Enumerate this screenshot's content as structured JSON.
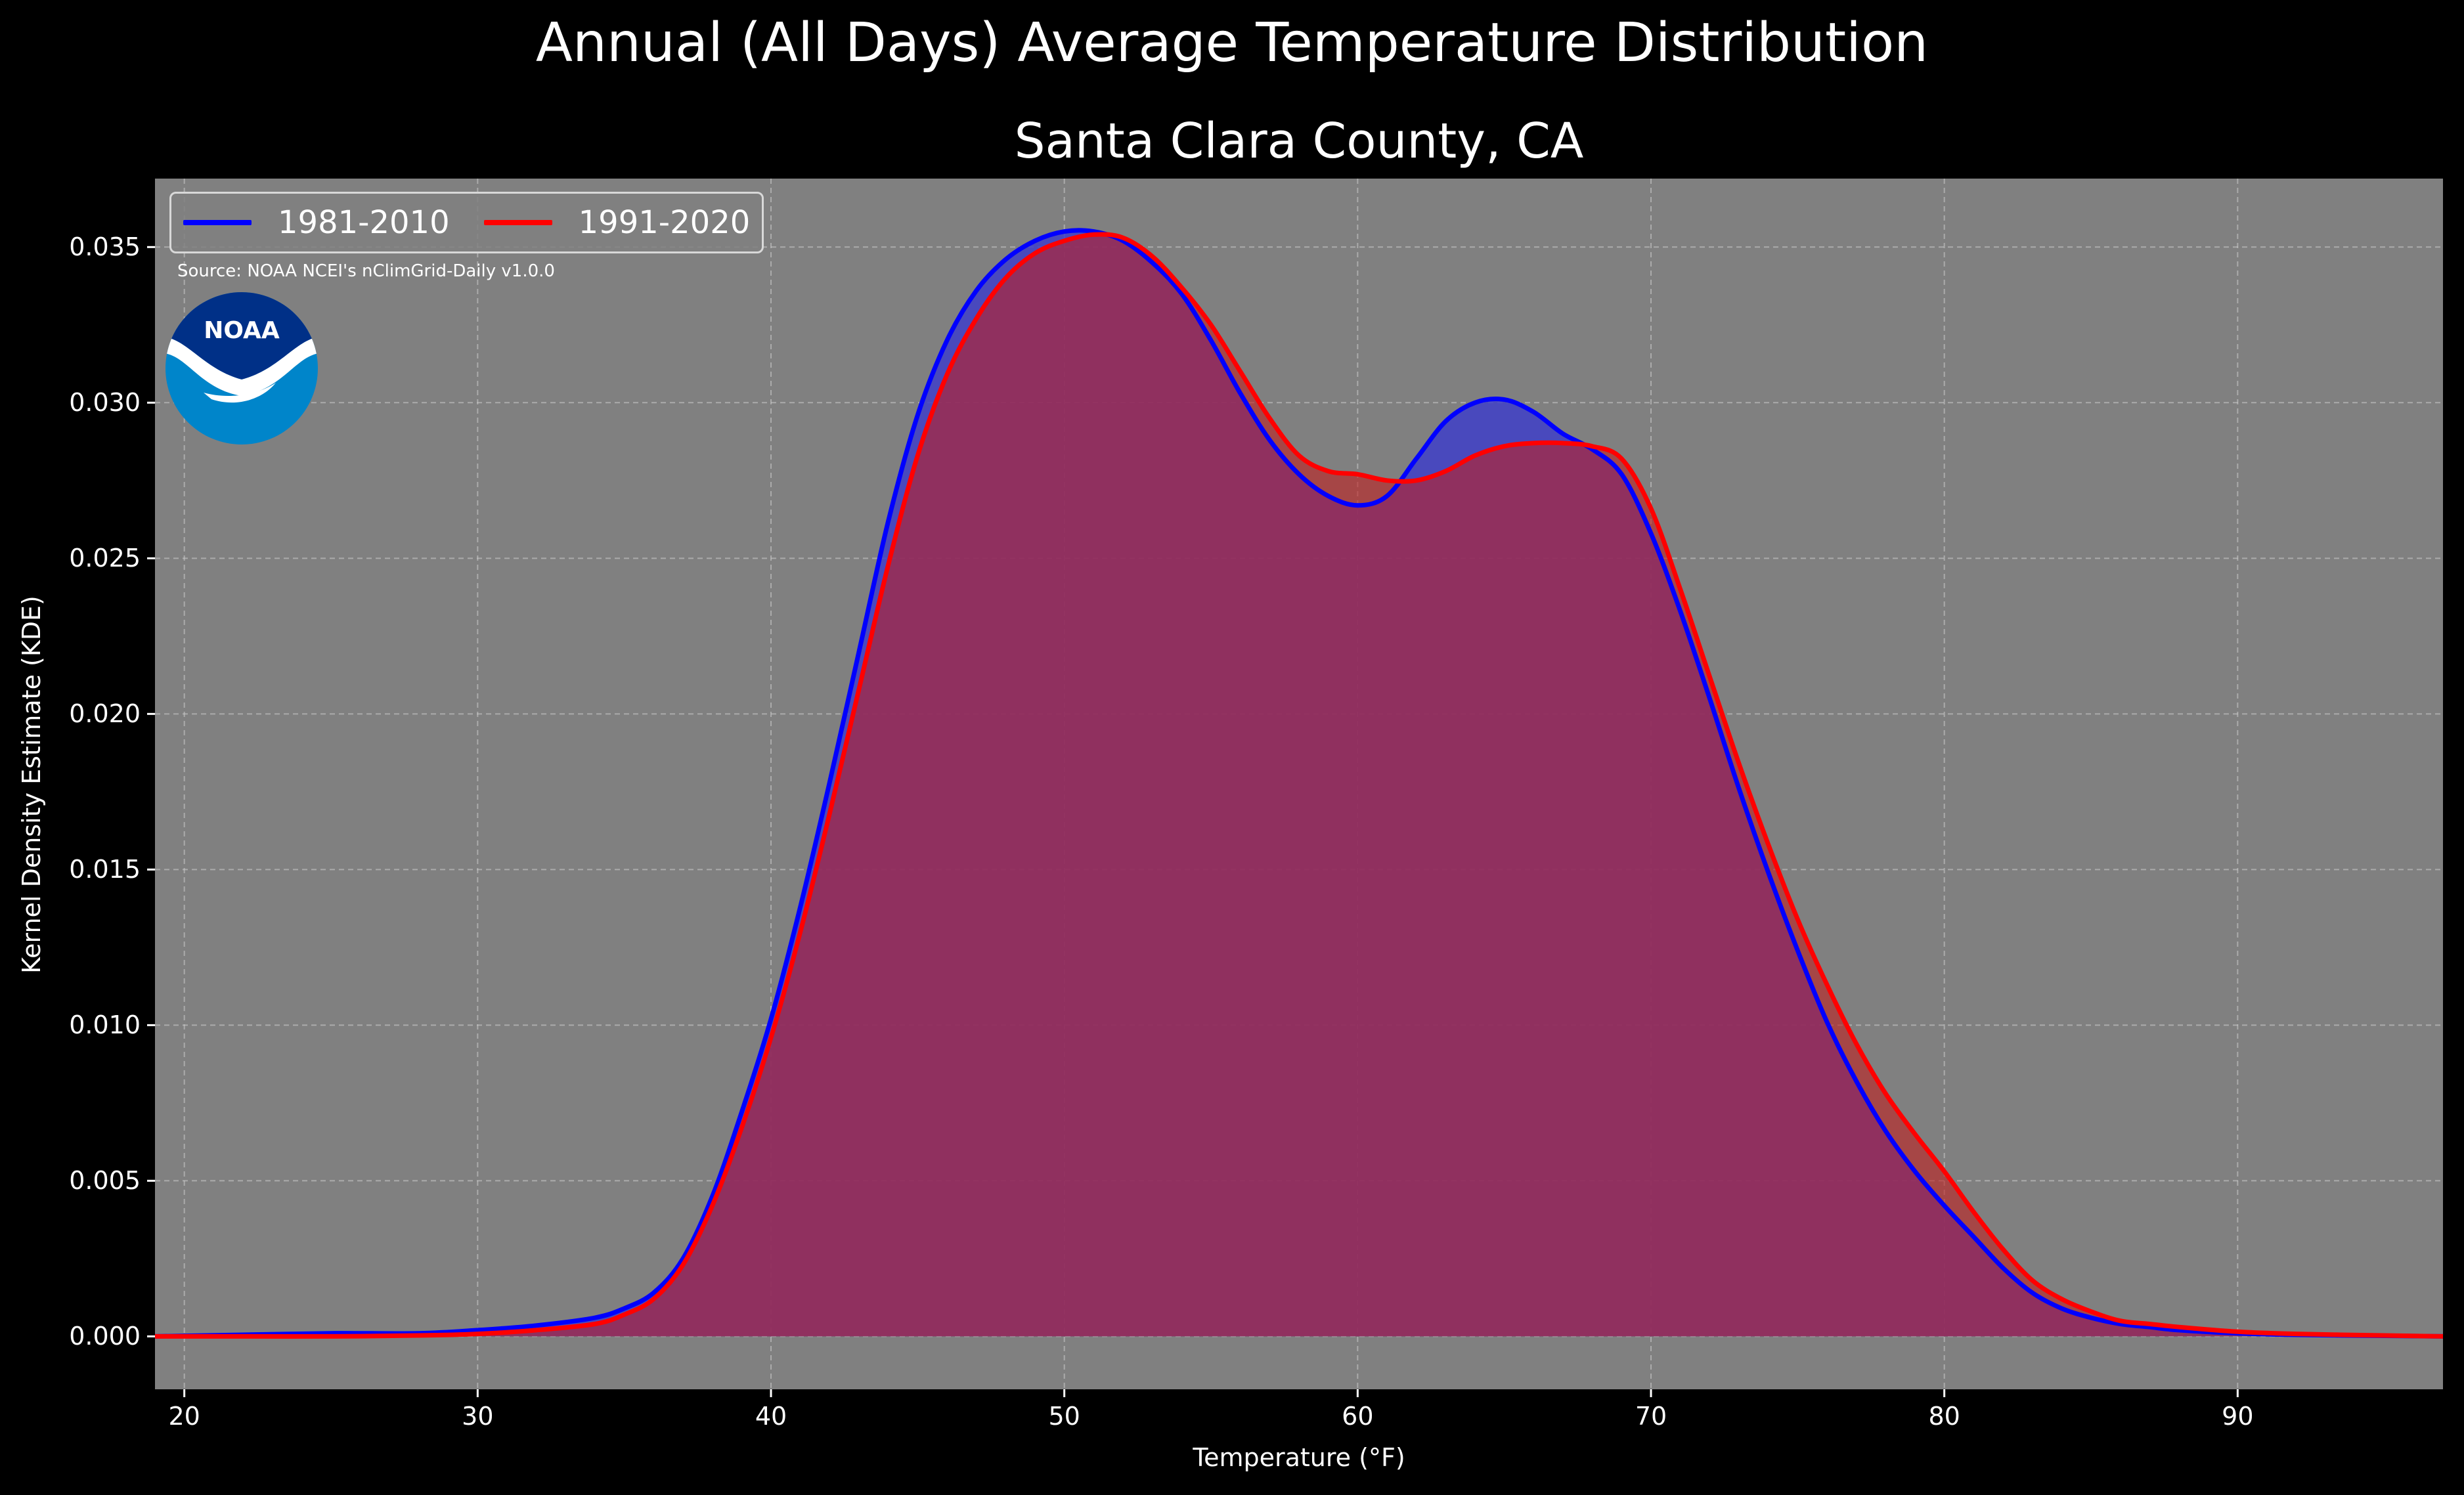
{
  "chart_data": {
    "type": "area",
    "suptitle": "Annual (All Days) Average Temperature Distribution",
    "title": "Santa Clara County, CA",
    "xlabel": "Temperature (°F)",
    "ylabel": "Kernel Density Estimate (KDE)",
    "xlim": [
      19,
      97
    ],
    "ylim": [
      -0.0017,
      0.0372
    ],
    "xticks": [
      "20",
      "30",
      "40",
      "50",
      "60",
      "70",
      "80",
      "90"
    ],
    "yticks": [
      "0.000",
      "0.005",
      "0.010",
      "0.015",
      "0.020",
      "0.025",
      "0.030",
      "0.035"
    ],
    "grid": true,
    "legend_position": "top-left",
    "background": "#808080",
    "series": [
      {
        "name": "1981-2010",
        "color": "#0000ff",
        "fill": "#4040c8",
        "x": [
          19,
          22,
          25,
          28,
          30,
          32,
          34,
          35,
          36,
          37,
          38,
          39,
          40,
          41,
          42,
          43,
          44,
          45,
          46,
          47,
          48,
          49,
          50,
          51,
          52,
          53,
          54,
          55,
          56,
          57,
          58,
          59,
          60,
          61,
          62,
          63,
          64,
          65,
          66,
          67,
          68,
          69,
          70,
          71,
          72,
          73,
          74,
          75,
          76,
          77,
          78,
          79,
          80,
          81,
          82,
          83,
          84,
          85,
          86,
          87,
          88,
          90,
          92,
          95,
          97
        ],
        "y": [
          0.0,
          5e-05,
          0.0001,
          0.0001,
          0.0002,
          0.00035,
          0.0006,
          0.0009,
          0.0014,
          0.0025,
          0.0045,
          0.0072,
          0.0102,
          0.0138,
          0.0178,
          0.022,
          0.0262,
          0.0296,
          0.032,
          0.0336,
          0.0346,
          0.0352,
          0.0355,
          0.0355,
          0.0352,
          0.0345,
          0.0335,
          0.032,
          0.0303,
          0.0288,
          0.0277,
          0.027,
          0.0267,
          0.027,
          0.0282,
          0.0294,
          0.03,
          0.0301,
          0.0297,
          0.029,
          0.0285,
          0.0277,
          0.0258,
          0.0233,
          0.0205,
          0.0176,
          0.0149,
          0.0124,
          0.0101,
          0.0082,
          0.0066,
          0.0053,
          0.0042,
          0.0032,
          0.0022,
          0.0014,
          0.0009,
          0.0006,
          0.0004,
          0.0003,
          0.0002,
          0.0001,
          5e-05,
          2e-05,
          0.0
        ]
      },
      {
        "name": "1991-2020",
        "color": "#ff0000",
        "fill": "#c02020",
        "x": [
          19,
          22,
          25,
          28,
          30,
          32,
          34,
          35,
          36,
          37,
          38,
          39,
          40,
          41,
          42,
          43,
          44,
          45,
          46,
          47,
          48,
          49,
          50,
          51,
          52,
          53,
          54,
          55,
          56,
          57,
          58,
          59,
          60,
          61,
          62,
          63,
          64,
          65,
          66,
          67,
          68,
          69,
          70,
          71,
          72,
          73,
          74,
          75,
          76,
          77,
          78,
          79,
          80,
          81,
          82,
          83,
          84,
          85,
          86,
          87,
          88,
          90,
          92,
          95,
          97
        ],
        "y": [
          0.0,
          0.0,
          0.0,
          3e-05,
          8e-05,
          0.0002,
          0.0004,
          0.0007,
          0.0012,
          0.0023,
          0.0042,
          0.0067,
          0.0096,
          0.013,
          0.0168,
          0.0208,
          0.0248,
          0.0283,
          0.0309,
          0.0327,
          0.034,
          0.0348,
          0.0352,
          0.0354,
          0.0353,
          0.0347,
          0.0337,
          0.0325,
          0.031,
          0.0295,
          0.0283,
          0.0278,
          0.0277,
          0.0275,
          0.0275,
          0.0278,
          0.0283,
          0.0286,
          0.0287,
          0.0287,
          0.0286,
          0.0282,
          0.0266,
          0.024,
          0.0212,
          0.0184,
          0.0158,
          0.0134,
          0.0113,
          0.0094,
          0.0078,
          0.0065,
          0.0053,
          0.004,
          0.0028,
          0.0018,
          0.0012,
          0.0008,
          0.0005,
          0.0004,
          0.0003,
          0.00015,
          8e-05,
          3e-05,
          0.0
        ]
      }
    ]
  },
  "source_text": "Source: NOAA NCEI's nClimGrid-Daily v1.0.0",
  "logo": {
    "text": "NOAA",
    "icon": "noaa-seagull-logo",
    "colors": {
      "ring": "#003087",
      "sky": "#0085ca",
      "bird": "#ffffff"
    }
  }
}
